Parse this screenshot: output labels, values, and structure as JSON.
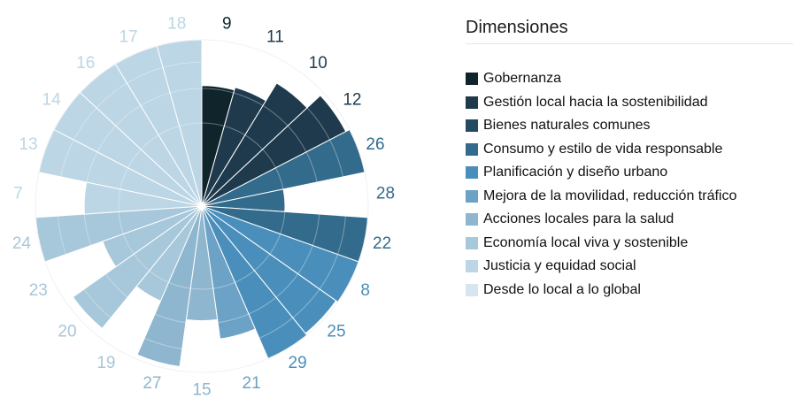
{
  "chart_data": {
    "type": "polar-area",
    "title": "",
    "legend_title": "Dimensiones",
    "legend_position": "right",
    "max_value": 4,
    "grid": true,
    "dimensions": [
      {
        "name": "Gobernanza",
        "color": "#10242b"
      },
      {
        "name": "Gestión local hacia la sostenibilidad",
        "color": "#1e3a4c"
      },
      {
        "name": "Bienes naturales comunes",
        "color": "#234a63"
      },
      {
        "name": "Consumo y estilo de vida responsable",
        "color": "#336b8c"
      },
      {
        "name": "Planificación y diseño urbano",
        "color": "#4a8fbb"
      },
      {
        "name": "Mejora de la movilidad, reducción tráfico",
        "color": "#6ca2c6"
      },
      {
        "name": "Acciones locales para la salud",
        "color": "#8fb6cf"
      },
      {
        "name": "Economía local viva y sostenible",
        "color": "#a7c7da"
      },
      {
        "name": "Justicia y equidad social",
        "color": "#bcd6e5"
      },
      {
        "name": "Desde lo local a lo global",
        "color": "#d6e5ef"
      }
    ],
    "sectors": [
      {
        "label": "9",
        "value": 2.1,
        "dimension": 0
      },
      {
        "label": "11",
        "value": 2.2,
        "dimension": 1
      },
      {
        "label": "10",
        "value": 3.0,
        "dimension": 1
      },
      {
        "label": "12",
        "value": 3.8,
        "dimension": 1
      },
      {
        "label": "26",
        "value": 4.0,
        "dimension": 3
      },
      {
        "label": "28",
        "value": 1.0,
        "dimension": 3
      },
      {
        "label": "22",
        "value": 4.0,
        "dimension": 3
      },
      {
        "label": "8",
        "value": 4.0,
        "dimension": 4
      },
      {
        "label": "25",
        "value": 3.9,
        "dimension": 4
      },
      {
        "label": "29",
        "value": 4.0,
        "dimension": 4
      },
      {
        "label": "21",
        "value": 2.6,
        "dimension": 5
      },
      {
        "label": "15",
        "value": 1.9,
        "dimension": 6
      },
      {
        "label": "27",
        "value": 3.8,
        "dimension": 6
      },
      {
        "label": "19",
        "value": 1.55,
        "dimension": 7
      },
      {
        "label": "20",
        "value": 3.6,
        "dimension": 7
      },
      {
        "label": "23",
        "value": 1.6,
        "dimension": 7
      },
      {
        "label": "24",
        "value": 4.0,
        "dimension": 7
      },
      {
        "label": "7",
        "value": 2.0,
        "dimension": 8
      },
      {
        "label": "13",
        "value": 4.0,
        "dimension": 8
      },
      {
        "label": "14",
        "value": 4.0,
        "dimension": 8
      },
      {
        "label": "16",
        "value": 4.0,
        "dimension": 8
      },
      {
        "label": "17",
        "value": 4.0,
        "dimension": 8
      },
      {
        "label": "18",
        "value": 4.0,
        "dimension": 8
      }
    ]
  }
}
